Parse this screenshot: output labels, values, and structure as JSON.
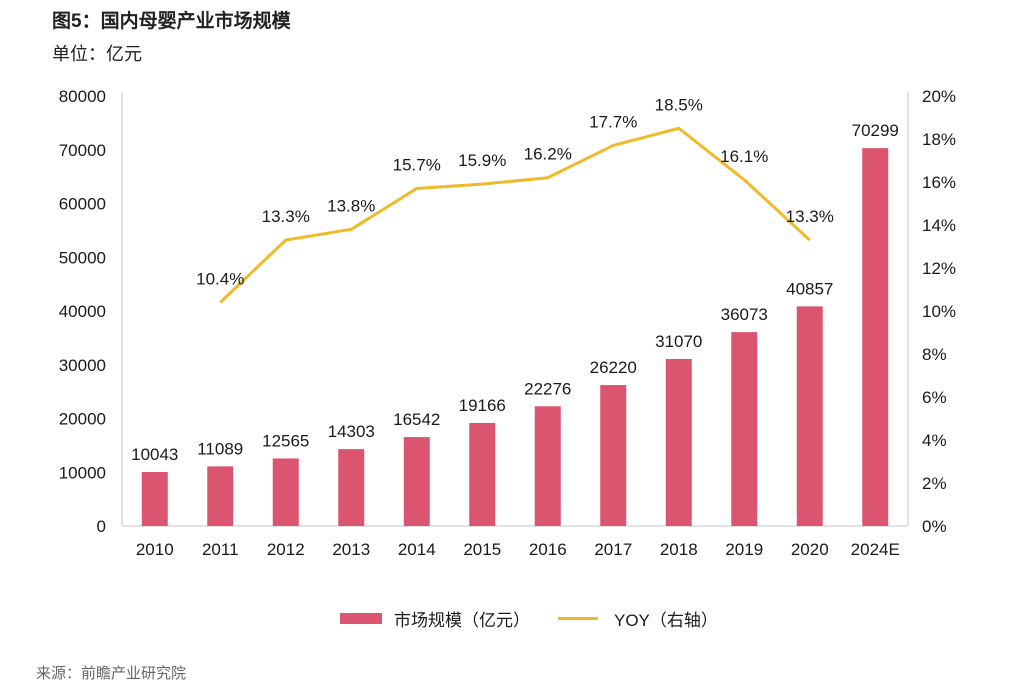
{
  "title": "图5：国内母婴产业市场规模",
  "unit": "单位：亿元",
  "source": "来源：前瞻产业研究院",
  "colors": {
    "bar": "#DC5570",
    "line": "#F0B928",
    "axis": "#d9d9d9"
  },
  "chart_data": {
    "type": "bar+line",
    "title": "图5：国内母婴产业市场规模",
    "subtitle": "单位：亿元",
    "categories": [
      "2010",
      "2011",
      "2012",
      "2013",
      "2014",
      "2015",
      "2016",
      "2017",
      "2018",
      "2019",
      "2020",
      "2024E"
    ],
    "series": [
      {
        "name": "市场规模（亿元）",
        "type": "bar",
        "axis": "left",
        "values": [
          10043,
          11089,
          12565,
          14303,
          16542,
          19166,
          22276,
          26220,
          31070,
          36073,
          40857,
          70299
        ],
        "labels": [
          "10043",
          "11089",
          "12565",
          "14303",
          "16542",
          "19166",
          "22276",
          "26220",
          "31070",
          "36073",
          "40857",
          "70299"
        ]
      },
      {
        "name": "YOY（右轴）",
        "type": "line",
        "axis": "right",
        "values": [
          null,
          10.4,
          13.3,
          13.8,
          15.7,
          15.9,
          16.2,
          17.7,
          18.5,
          16.1,
          13.3,
          null
        ],
        "labels": [
          "",
          "10.4%",
          "13.3%",
          "13.8%",
          "15.7%",
          "15.9%",
          "16.2%",
          "17.7%",
          "18.5%",
          "16.1%",
          "13.3%",
          ""
        ]
      }
    ],
    "y_left": {
      "min": 0,
      "max": 80000,
      "step": 10000,
      "ticks": [
        "0",
        "10000",
        "20000",
        "30000",
        "40000",
        "50000",
        "60000",
        "70000",
        "80000"
      ]
    },
    "y_right": {
      "min": 0,
      "max": 20,
      "step": 2,
      "ticks": [
        "0%",
        "2%",
        "4%",
        "6%",
        "8%",
        "10%",
        "12%",
        "14%",
        "16%",
        "18%",
        "20%"
      ]
    },
    "xlabel": "",
    "ylabel": "",
    "grid": false,
    "legend": {
      "position": "bottom",
      "entries": [
        "市场规模（亿元）",
        "YOY（右轴）"
      ]
    }
  }
}
